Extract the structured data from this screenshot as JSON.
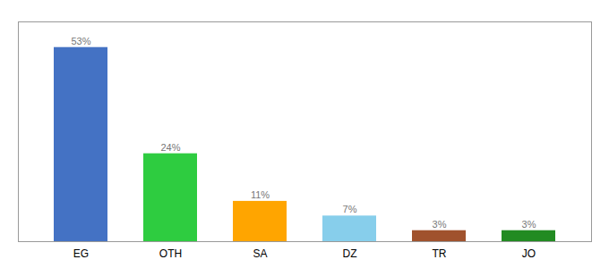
{
  "chart_data": {
    "type": "bar",
    "categories": [
      "EG",
      "OTH",
      "SA",
      "DZ",
      "TR",
      "JO"
    ],
    "values": [
      53,
      24,
      11,
      7,
      3,
      3
    ],
    "value_labels": [
      "53%",
      "24%",
      "11%",
      "7%",
      "3%",
      "3%"
    ],
    "colors": [
      "#4472C4",
      "#2ECC40",
      "#FFA500",
      "#87CEEB",
      "#A0522D",
      "#228B22"
    ],
    "ylim": [
      0,
      60
    ],
    "data_labels": true,
    "tick_labels": "x",
    "grid": false
  }
}
